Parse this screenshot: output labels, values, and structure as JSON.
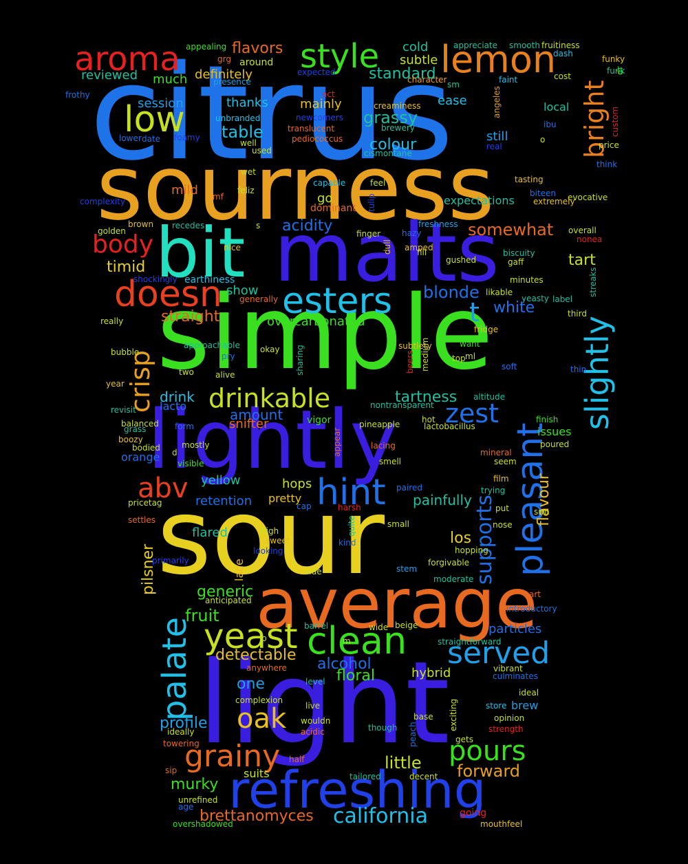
{
  "colors": {
    "background": "#000000"
  },
  "words": [
    {
      "text": "citrus",
      "color": "#1e73e8"
    },
    {
      "text": "sourness",
      "color": "#e8a020"
    },
    {
      "text": "malts",
      "color": "#3a1ee0"
    },
    {
      "text": "bit",
      "color": "#20e0c0"
    },
    {
      "text": "simple",
      "color": "#3ae020"
    },
    {
      "text": "lightly",
      "color": "#3a1ee0"
    },
    {
      "text": "sour",
      "color": "#e8d020"
    },
    {
      "text": "average",
      "color": "#e86a20"
    },
    {
      "text": "light",
      "color": "#3a1ee0"
    },
    {
      "text": "refreshing",
      "color": "#2040e8"
    },
    {
      "text": "aroma",
      "color": "#e82020"
    },
    {
      "text": "style",
      "color": "#3ae020"
    },
    {
      "text": "lemon",
      "color": "#e8801e"
    },
    {
      "text": "low",
      "color": "#c8e020"
    },
    {
      "text": "body",
      "color": "#e82020"
    },
    {
      "text": "doesn",
      "color": "#e84020"
    },
    {
      "text": "esters",
      "color": "#20c0e8"
    },
    {
      "text": "pleasant",
      "color": "#2070e8"
    },
    {
      "text": "slightly",
      "color": "#20c0e8"
    },
    {
      "text": "bright",
      "color": "#e8801e"
    },
    {
      "text": "crisp",
      "color": "#e8a020"
    },
    {
      "text": "drinkable",
      "color": "#c8e020"
    },
    {
      "text": "zest",
      "color": "#2070e8"
    },
    {
      "text": "t",
      "color": "#20a0e8"
    },
    {
      "text": "hint",
      "color": "#2070e8"
    },
    {
      "text": "abv",
      "color": "#e84020"
    },
    {
      "text": "yeast",
      "color": "#c8e020"
    },
    {
      "text": "clean",
      "color": "#3ae020"
    },
    {
      "text": "served",
      "color": "#20a0e8"
    },
    {
      "text": "palate",
      "color": "#20c0e8"
    },
    {
      "text": "grainy",
      "color": "#e86a20"
    },
    {
      "text": "pours",
      "color": "#3ae020"
    },
    {
      "text": "oak",
      "color": "#e8c020"
    },
    {
      "text": "california",
      "color": "#20c0e8"
    },
    {
      "text": "supports",
      "color": "#2070e8"
    },
    {
      "text": "flavour",
      "color": "#e8c020"
    },
    {
      "text": "blonde",
      "color": "#2070e8"
    },
    {
      "text": "white",
      "color": "#2070e8"
    },
    {
      "text": "tart",
      "color": "#c8e020"
    },
    {
      "text": "somewhat",
      "color": "#e86a20"
    },
    {
      "text": "acidity",
      "color": "#2070e8"
    },
    {
      "text": "colour",
      "color": "#20c0e8"
    },
    {
      "text": "grassy",
      "color": "#20c0a0"
    },
    {
      "text": "table",
      "color": "#20c0e8"
    },
    {
      "text": "standard",
      "color": "#20c0a0"
    },
    {
      "text": "timid",
      "color": "#e8d020"
    },
    {
      "text": "straight",
      "color": "#e86a20"
    },
    {
      "text": "overcarbonated",
      "color": "#3ae020"
    },
    {
      "text": "tartness",
      "color": "#20c0a0"
    },
    {
      "text": "drink",
      "color": "#20c0e8"
    },
    {
      "text": "amount",
      "color": "#2070e8"
    },
    {
      "text": "pilsner",
      "color": "#e8d020"
    },
    {
      "text": "generic",
      "color": "#3ae020"
    },
    {
      "text": "fruit",
      "color": "#3ae020"
    },
    {
      "text": "detectable",
      "color": "#e8c020"
    },
    {
      "text": "alcohol",
      "color": "#2070e8"
    },
    {
      "text": "floral",
      "color": "#3ae020"
    },
    {
      "text": "one",
      "color": "#20a0e8"
    },
    {
      "text": "profile",
      "color": "#20a0e8"
    },
    {
      "text": "little",
      "color": "#c8e020"
    },
    {
      "text": "forward",
      "color": "#e8a020"
    },
    {
      "text": "murky",
      "color": "#3ae020"
    },
    {
      "text": "brettanomyces",
      "color": "#e86a20"
    },
    {
      "text": "painfully",
      "color": "#20c0a0"
    },
    {
      "text": "los",
      "color": "#e8d020"
    },
    {
      "text": "retention",
      "color": "#2070e8"
    },
    {
      "text": "hops",
      "color": "#c8e020"
    },
    {
      "text": "yellow",
      "color": "#20c0a0"
    },
    {
      "text": "flared",
      "color": "#20c0a0"
    },
    {
      "text": "issues",
      "color": "#3ae020"
    },
    {
      "text": "particles",
      "color": "#2070e8"
    },
    {
      "text": "hybrid",
      "color": "#c8e020"
    },
    {
      "text": "brew",
      "color": "#20a0e8"
    },
    {
      "text": "flavors",
      "color": "#e86a20"
    },
    {
      "text": "definitely",
      "color": "#e8c020"
    },
    {
      "text": "much",
      "color": "#3ae020"
    },
    {
      "text": "reviewed",
      "color": "#20c0a0"
    },
    {
      "text": "session",
      "color": "#20a0e8"
    },
    {
      "text": "thanks",
      "color": "#20c0e8"
    },
    {
      "text": "mainly",
      "color": "#e8c020"
    },
    {
      "text": "cold",
      "color": "#20c0a0"
    },
    {
      "text": "subtle",
      "color": "#c8e020"
    },
    {
      "text": "ease",
      "color": "#20c0e8"
    },
    {
      "text": "still",
      "color": "#20a0e8"
    },
    {
      "text": "local",
      "color": "#20c0a0"
    },
    {
      "text": "mild",
      "color": "#e86a20"
    },
    {
      "text": "go",
      "color": "#c8e020"
    },
    {
      "text": "expectations",
      "color": "#20c0a0"
    },
    {
      "text": "show",
      "color": "#20c0a0"
    },
    {
      "text": "snifter",
      "color": "#e86a20"
    },
    {
      "text": "lacto",
      "color": "#2070e8"
    },
    {
      "text": "orange",
      "color": "#2070e8"
    },
    {
      "text": "lace",
      "color": "#e8c020"
    },
    {
      "text": "pretty",
      "color": "#e8c020"
    },
    {
      "text": "around",
      "color": "#c8e020"
    },
    {
      "text": "appealing",
      "color": "#3ae020"
    },
    {
      "text": "presence",
      "color": "#20a0e8"
    },
    {
      "text": "expected",
      "color": "#2040e8"
    },
    {
      "text": "appreciate",
      "color": "#20c0a0"
    },
    {
      "text": "smooth",
      "color": "#20c0a0"
    },
    {
      "text": "fruitiness",
      "color": "#c8e020"
    },
    {
      "text": "frothy",
      "color": "#2070e8"
    },
    {
      "text": "unbranded",
      "color": "#20c0e8"
    },
    {
      "text": "translucent",
      "color": "#e86a20"
    },
    {
      "text": "pediococcus",
      "color": "#e86a20"
    },
    {
      "text": "brewery",
      "color": "#20c0a0"
    },
    {
      "text": "creaminess",
      "color": "#e8c020"
    },
    {
      "text": "cismontane",
      "color": "#20c0a0"
    },
    {
      "text": "newcomers",
      "color": "#2040e8"
    },
    {
      "text": "grg",
      "color": "#e86a20"
    },
    {
      "text": "act",
      "color": "#e82020"
    },
    {
      "text": "character",
      "color": "#e8a020"
    },
    {
      "text": "faint",
      "color": "#20c0e8"
    },
    {
      "text": "sm",
      "color": "#20c0a0"
    },
    {
      "text": "dash",
      "color": "#20c0e8"
    },
    {
      "text": "cost",
      "color": "#c8e020"
    },
    {
      "text": "ibu",
      "color": "#2070e8"
    },
    {
      "text": "funky",
      "color": "#e8c020"
    },
    {
      "text": "funk",
      "color": "#20c0a0"
    },
    {
      "text": "dr",
      "color": "#3ae020"
    },
    {
      "text": "custom",
      "color": "#e82020"
    },
    {
      "text": "o",
      "color": "#c8e020"
    },
    {
      "text": "price",
      "color": "#c8e020"
    },
    {
      "text": "think",
      "color": "#2070e8"
    },
    {
      "text": "evocative",
      "color": "#c8e020"
    },
    {
      "text": "tasting",
      "color": "#e8c020"
    },
    {
      "text": "biteen",
      "color": "#2070e8"
    },
    {
      "text": "extremely",
      "color": "#e8c020"
    },
    {
      "text": "real",
      "color": "#2040e8"
    },
    {
      "text": "angeles",
      "color": "#e8a020"
    },
    {
      "text": "lower",
      "color": "#2070e8"
    },
    {
      "text": "date",
      "color": "#2070e8"
    },
    {
      "text": "foamy",
      "color": "#2040e8"
    },
    {
      "text": "well",
      "color": "#c8e020"
    },
    {
      "text": "used",
      "color": "#c8e020"
    },
    {
      "text": "wet",
      "color": "#c8e020"
    },
    {
      "text": "feliz",
      "color": "#c8e020"
    },
    {
      "text": "capable",
      "color": "#20c0e8"
    },
    {
      "text": "feel",
      "color": "#c8e020"
    },
    {
      "text": "tulip",
      "color": "#2040e8"
    },
    {
      "text": "dominant",
      "color": "#e86a20"
    },
    {
      "text": "complexity",
      "color": "#2040e8"
    },
    {
      "text": "mf",
      "color": "#e86a20"
    },
    {
      "text": "golden",
      "color": "#c8e020"
    },
    {
      "text": "brown",
      "color": "#e8c020"
    },
    {
      "text": "recedes",
      "color": "#20c0a0"
    },
    {
      "text": "s",
      "color": "#c8e020"
    },
    {
      "text": "nice",
      "color": "#e8c020"
    },
    {
      "text": "finger",
      "color": "#c8e020"
    },
    {
      "text": "dull",
      "color": "#e8c020"
    },
    {
      "text": "hazy",
      "color": "#2070e8"
    },
    {
      "text": "freshness",
      "color": "#20a0e8"
    },
    {
      "text": "overall",
      "color": "#c8e020"
    },
    {
      "text": "nonea",
      "color": "#e82020"
    },
    {
      "text": "fill",
      "color": "#c8e020"
    },
    {
      "text": "amped",
      "color": "#e8c020"
    },
    {
      "text": "gushed",
      "color": "#c8e020"
    },
    {
      "text": "biscuity",
      "color": "#20c0a0"
    },
    {
      "text": "gaff",
      "color": "#c8e020"
    },
    {
      "text": "shockingly",
      "color": "#2040e8"
    },
    {
      "text": "earthiness",
      "color": "#20c0e8"
    },
    {
      "text": "minutes",
      "color": "#c8e020"
    },
    {
      "text": "streaks",
      "color": "#20c0a0"
    },
    {
      "text": "likable",
      "color": "#c8e020"
    },
    {
      "text": "label",
      "color": "#20c0a0"
    },
    {
      "text": "third",
      "color": "#c8e020"
    },
    {
      "text": "generally",
      "color": "#e86a20"
    },
    {
      "text": "really",
      "color": "#c8e020"
    },
    {
      "text": "yeasty",
      "color": "#20c0a0"
    },
    {
      "text": "fridge",
      "color": "#e8c020"
    },
    {
      "text": "want",
      "color": "#3ae020"
    },
    {
      "text": "approachable",
      "color": "#20c0a0"
    },
    {
      "text": "okay",
      "color": "#c8e020"
    },
    {
      "text": "pry",
      "color": "#2070e8"
    },
    {
      "text": "bubble",
      "color": "#c8e020"
    },
    {
      "text": "subtlety",
      "color": "#e8c020"
    },
    {
      "text": "top",
      "color": "#c8e020"
    },
    {
      "text": "ml",
      "color": "#c8e020"
    },
    {
      "text": "soft",
      "color": "#2070e8"
    },
    {
      "text": "thin",
      "color": "#2070e8"
    },
    {
      "text": "beers",
      "color": "#e82020"
    },
    {
      "text": "medium",
      "color": "#c8e020"
    },
    {
      "text": "sharing",
      "color": "#20c0a0"
    },
    {
      "text": "two",
      "color": "#c8e020"
    },
    {
      "text": "alive",
      "color": "#c8e020"
    },
    {
      "text": "year",
      "color": "#e8c020"
    },
    {
      "text": "altitude",
      "color": "#20c0a0"
    },
    {
      "text": "revisit",
      "color": "#20c0a0"
    },
    {
      "text": "nontransparent",
      "color": "#20c0a0"
    },
    {
      "text": "finish",
      "color": "#3ae020"
    },
    {
      "text": "balanced",
      "color": "#c8e020"
    },
    {
      "text": "form",
      "color": "#2070e8"
    },
    {
      "text": "vigor",
      "color": "#3ae020"
    },
    {
      "text": "pineapple",
      "color": "#c8e020"
    },
    {
      "text": "hot",
      "color": "#c8e020"
    },
    {
      "text": "lactobacillus",
      "color": "#c8e020"
    },
    {
      "text": "grass",
      "color": "#20c0a0"
    },
    {
      "text": "boozy",
      "color": "#e8c020"
    },
    {
      "text": "bodied",
      "color": "#c8e020"
    },
    {
      "text": "d",
      "color": "#c8e020"
    },
    {
      "text": "mostly",
      "color": "#c8e020"
    },
    {
      "text": "appear",
      "color": "#e86a20"
    },
    {
      "text": "lacing",
      "color": "#e86a20"
    },
    {
      "text": "poured",
      "color": "#c8e020"
    },
    {
      "text": "mineral",
      "color": "#e86a20"
    },
    {
      "text": "seem",
      "color": "#c8e020"
    },
    {
      "text": "visible",
      "color": "#3ae020"
    },
    {
      "text": "smell",
      "color": "#c8e020"
    },
    {
      "text": "film",
      "color": "#e8c020"
    },
    {
      "text": "trying",
      "color": "#20c0a0"
    },
    {
      "text": "paired",
      "color": "#2070e8"
    },
    {
      "text": "pricetag",
      "color": "#c8e020"
    },
    {
      "text": "harsh",
      "color": "#e82020"
    },
    {
      "text": "cap",
      "color": "#2070e8"
    },
    {
      "text": "put",
      "color": "#c8e020"
    },
    {
      "text": "srm",
      "color": "#c8e020"
    },
    {
      "text": "settles",
      "color": "#e86a20"
    },
    {
      "text": "quite",
      "color": "#20c0a0"
    },
    {
      "text": "small",
      "color": "#c8e020"
    },
    {
      "text": "nose",
      "color": "#c8e020"
    },
    {
      "text": "high",
      "color": "#c8e020"
    },
    {
      "text": "sweet",
      "color": "#e8c020"
    },
    {
      "text": "kind",
      "color": "#2070e8"
    },
    {
      "text": "looking",
      "color": "#2040e8"
    },
    {
      "text": "hopping",
      "color": "#c8e020"
    },
    {
      "text": "primarily",
      "color": "#2040e8"
    },
    {
      "text": "forgivable",
      "color": "#c8e020"
    },
    {
      "text": "stem",
      "color": "#20a0e8"
    },
    {
      "text": "side",
      "color": "#c8e020"
    },
    {
      "text": "moderate",
      "color": "#20c0a0"
    },
    {
      "text": "anticipated",
      "color": "#c8e020"
    },
    {
      "text": "art",
      "color": "#e86a20"
    },
    {
      "text": "introductory",
      "color": "#2070e8"
    },
    {
      "text": "barrel",
      "color": "#20c0a0"
    },
    {
      "text": "b",
      "color": "#c8e020"
    },
    {
      "text": "m",
      "color": "#c8e020"
    },
    {
      "text": "wide",
      "color": "#c8e020"
    },
    {
      "text": "beige",
      "color": "#c8e020"
    },
    {
      "text": "straightforward",
      "color": "#20c0a0"
    },
    {
      "text": "anywhere",
      "color": "#e86a20"
    },
    {
      "text": "vibrant",
      "color": "#c8e020"
    },
    {
      "text": "culminates",
      "color": "#2070e8"
    },
    {
      "text": "level",
      "color": "#20c0a0"
    },
    {
      "text": "ideal",
      "color": "#c8e020"
    },
    {
      "text": "complexion",
      "color": "#c8e020"
    },
    {
      "text": "live",
      "color": "#c8e020"
    },
    {
      "text": "exciting",
      "color": "#c8e020"
    },
    {
      "text": "store",
      "color": "#20c0e8"
    },
    {
      "text": "opinion",
      "color": "#c8e020"
    },
    {
      "text": "base",
      "color": "#c8e020"
    },
    {
      "text": "wouldn",
      "color": "#c8e020"
    },
    {
      "text": "strength",
      "color": "#e82020"
    },
    {
      "text": "ideally",
      "color": "#c8e020"
    },
    {
      "text": "acidic",
      "color": "#e86a20"
    },
    {
      "text": "though",
      "color": "#20c0a0"
    },
    {
      "text": "peach",
      "color": "#2070e8"
    },
    {
      "text": "gets",
      "color": "#c8e020"
    },
    {
      "text": "towering",
      "color": "#e86a20"
    },
    {
      "text": "half",
      "color": "#e86a20"
    },
    {
      "text": "sip",
      "color": "#e86a20"
    },
    {
      "text": "suits",
      "color": "#c8e020"
    },
    {
      "text": "tailored",
      "color": "#20c0a0"
    },
    {
      "text": "decent",
      "color": "#c8e020"
    },
    {
      "text": "unrefined",
      "color": "#c8e020"
    },
    {
      "text": "age",
      "color": "#2070e8"
    },
    {
      "text": "going",
      "color": "#e82020"
    },
    {
      "text": "overshadowed",
      "color": "#3ae020"
    },
    {
      "text": "mouthfeel",
      "color": "#e8c020"
    }
  ]
}
